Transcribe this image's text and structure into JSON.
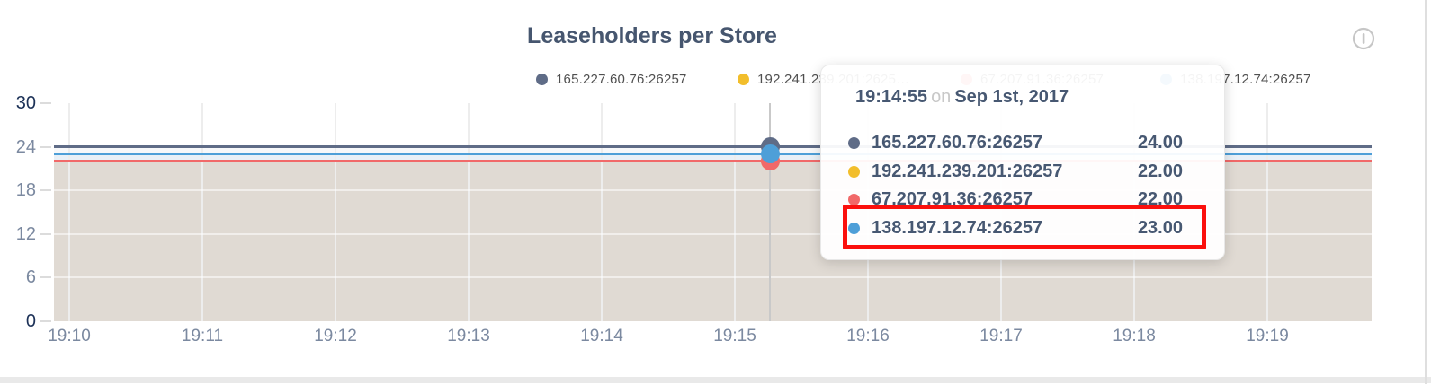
{
  "header": {
    "title": "Leaseholders per Store",
    "info_icon": "alert-circle-icon"
  },
  "legend": {
    "items": [
      {
        "label": "165.227.60.76:26257",
        "color": "#5F6C87"
      },
      {
        "label": "192.241.239.201:2625…",
        "color": "#F2BE2C"
      },
      {
        "label": "67.207.91.36:26257",
        "color": "#F16969"
      },
      {
        "label": "138.197.12.74:26257",
        "color": "#4E9FD8"
      }
    ]
  },
  "tooltip": {
    "time": "19:14:55",
    "conjunction": "on",
    "date": "Sep 1st, 2017",
    "rows": [
      {
        "label": "165.227.60.76:26257",
        "value": "24.00",
        "color": "#5F6C87",
        "highlighted": false
      },
      {
        "label": "192.241.239.201:26257",
        "value": "22.00",
        "color": "#F2BE2C",
        "highlighted": false
      },
      {
        "label": "67.207.91.36:26257",
        "value": "22.00",
        "color": "#F16969",
        "highlighted": false
      },
      {
        "label": "138.197.12.74:26257",
        "value": "23.00",
        "color": "#4E9FD8",
        "highlighted": true
      }
    ],
    "highlight_color": "#fb100d"
  },
  "chart_data": {
    "type": "area",
    "title": "Leaseholders per Store",
    "x_ticks": [
      "19:10",
      "19:11",
      "19:12",
      "19:13",
      "19:14",
      "19:15",
      "19:16",
      "19:17",
      "19:18",
      "19:19"
    ],
    "y_ticks": [
      30,
      24,
      18,
      12,
      6,
      0
    ],
    "ylim": [
      0,
      30
    ],
    "grid": true,
    "legend_position": "top",
    "series": [
      {
        "name": "165.227.60.76:26257",
        "color": "#5F6C87",
        "value": 24
      },
      {
        "name": "192.241.239.201:26257",
        "color": "#F2BE2C",
        "value": 22
      },
      {
        "name": "67.207.91.36:26257",
        "color": "#F16969",
        "value": 22
      },
      {
        "name": "138.197.12.74:26257",
        "color": "#4E9FD8",
        "value": 23
      }
    ],
    "hover": {
      "time": "19:14:55",
      "date": "Sep 1st, 2017",
      "values": [
        24,
        22,
        22,
        23
      ]
    },
    "fill_bands": [
      {
        "from": 24,
        "to": 23,
        "color": "#f7f8fa"
      },
      {
        "from": 23,
        "to": 22,
        "color": "#e9f0f7"
      },
      {
        "from": 22,
        "to": 0,
        "color": "#e0dad3"
      }
    ]
  },
  "colors": {
    "title": "#46566f",
    "axis_label": "#7b89a0",
    "axis_label_strong": "#1c3157",
    "legend_text": "#4f4f4f",
    "grid_vertical": "#ededed",
    "hover_line": "#c9c9c9",
    "tooltip_text": "#475872",
    "icon": "#c6c6c6",
    "divider": "#e9e9e9",
    "panel_border": "#dfdfdf"
  }
}
